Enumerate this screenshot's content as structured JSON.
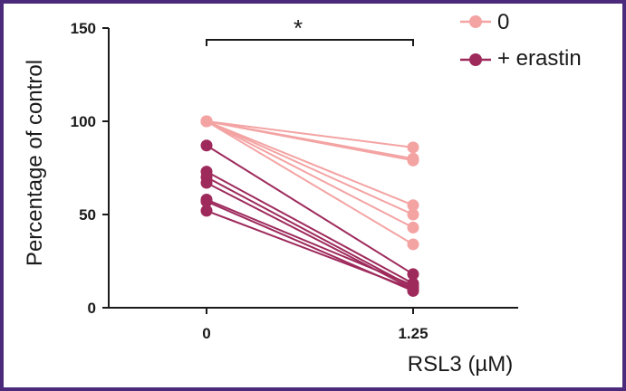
{
  "chart_data": {
    "type": "line",
    "title": "",
    "xlabel": "RSL3 (µM)",
    "ylabel": "Percentage of control",
    "categories": [
      "0",
      "1.25"
    ],
    "ylim": [
      0,
      150
    ],
    "yticks": [
      "0",
      "50",
      "100",
      "150"
    ],
    "grid": false,
    "legend_position": "top-right",
    "significance": {
      "label": "*",
      "between": [
        "0",
        "1.25"
      ]
    },
    "series": [
      {
        "name": "0",
        "color": "#f4a3a3",
        "pairs": [
          [
            100,
            86
          ],
          [
            100,
            80
          ],
          [
            100,
            79
          ],
          [
            100,
            55
          ],
          [
            100,
            50
          ],
          [
            100,
            43
          ],
          [
            100,
            34
          ]
        ]
      },
      {
        "name": "+ erastin",
        "color": "#9e2a5c",
        "pairs": [
          [
            87,
            18
          ],
          [
            73,
            13
          ],
          [
            70,
            11
          ],
          [
            67,
            10
          ],
          [
            58,
            12
          ],
          [
            57,
            9
          ],
          [
            52,
            10
          ]
        ]
      }
    ]
  }
}
